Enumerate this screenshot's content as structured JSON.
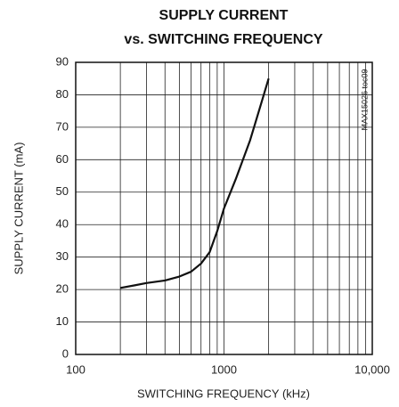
{
  "chart_data": {
    "type": "line",
    "title": [
      "SUPPLY CURRENT",
      "vs. SWITCHING FREQUENCY"
    ],
    "annotation": "MAX15026 toc09",
    "x_label": "SWITCHING FREQUENCY (kHz)",
    "y_label": "SUPPLY CURRENT (mA)",
    "x": [
      200,
      250,
      300,
      400,
      500,
      600,
      700,
      800,
      900,
      1000,
      1200,
      1500,
      1800,
      2000
    ],
    "values": [
      20.5,
      21.3,
      22,
      22.8,
      24,
      25.5,
      28,
      31.5,
      38,
      45,
      54,
      66,
      78,
      85
    ],
    "color": "#111111",
    "x_log": true,
    "xlim": [
      100,
      10000
    ],
    "xticks": [
      100,
      1000,
      {
        "value": 10000,
        "label": "10,000"
      }
    ],
    "xminor_ticks": [
      200,
      300,
      400,
      500,
      600,
      700,
      800,
      900,
      2000,
      3000,
      4000,
      5000,
      6000,
      7000,
      8000,
      9000
    ],
    "ylim": [
      0,
      90
    ],
    "yticks": [
      0,
      10,
      20,
      30,
      40,
      50,
      60,
      70,
      80,
      90
    ],
    "grid": true
  }
}
